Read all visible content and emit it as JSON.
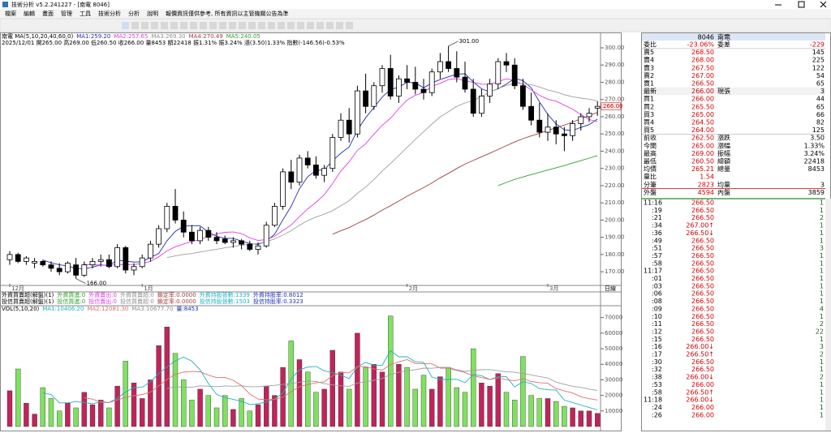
{
  "window": {
    "title": "技術分析 v5.2.241227 - [南電 8046]"
  },
  "menu": [
    "檔案",
    "編輯",
    "畫面",
    "管理",
    "工具",
    "技術分析",
    "分析",
    "說明",
    "報價資訊僅供參考, 所有資訊以主管機關公告為準"
  ],
  "chart_data": {
    "type": "candlestick",
    "header": [
      {
        "text": "南電 MA(5,10,20,40,60,0)",
        "color": "#000000"
      },
      {
        "text": "MA1:259.20",
        "color": "#2030b0"
      },
      {
        "text": "MA2:257.65",
        "color": "#e040e0"
      },
      {
        "text": "MA3:269.30",
        "color": "#909090"
      },
      {
        "text": "MA4:270.49",
        "color": "#a04040"
      },
      {
        "text": "MA5:240.05",
        "color": "#30a030"
      }
    ],
    "info_line": "2025/12/01 開265.00 高269.00 低260.50 收266.00 量8453 額22418 振1.31% 振3.24% 漲(3.50)1.33% 指數(-146.56)-0.53%",
    "ohlc": {
      "open": [
        177,
        180,
        176,
        175,
        176,
        174,
        172,
        170,
        174,
        168,
        174,
        176,
        177,
        173,
        184,
        171,
        173,
        178,
        186,
        195,
        208,
        200,
        193,
        188,
        194,
        190,
        189,
        187,
        188,
        186,
        183,
        185,
        197,
        208,
        228,
        222,
        236,
        232,
        226,
        230,
        248,
        258,
        250,
        275,
        266,
        278,
        288,
        272,
        282,
        280,
        276,
        274,
        286,
        292,
        288,
        283,
        276,
        262,
        272,
        279,
        292,
        290,
        278,
        266,
        258,
        251,
        254,
        250,
        249,
        256,
        260,
        265
      ],
      "high": [
        182,
        181,
        179,
        178,
        177,
        176,
        175,
        176,
        178,
        176,
        178,
        180,
        180,
        186,
        185,
        175,
        180,
        188,
        197,
        210,
        218,
        205,
        197,
        196,
        196,
        193,
        191,
        190,
        189,
        188,
        187,
        199,
        210,
        230,
        235,
        238,
        240,
        237,
        232,
        250,
        262,
        265,
        278,
        285,
        280,
        290,
        296,
        284,
        290,
        289,
        282,
        288,
        297,
        301,
        298,
        292,
        282,
        276,
        282,
        294,
        297,
        294,
        282,
        274,
        268,
        262,
        258,
        254,
        258,
        262,
        265,
        269
      ],
      "low": [
        174,
        175,
        174,
        172,
        173,
        170,
        168,
        169,
        166,
        167,
        172,
        173,
        172,
        172,
        169,
        168,
        172,
        176,
        184,
        193,
        198,
        190,
        186,
        186,
        188,
        186,
        186,
        184,
        183,
        182,
        180,
        184,
        196,
        206,
        218,
        220,
        230,
        224,
        222,
        228,
        246,
        245,
        248,
        262,
        264,
        274,
        270,
        268,
        276,
        273,
        270,
        272,
        282,
        286,
        280,
        274,
        260,
        260,
        268,
        276,
        286,
        276,
        264,
        255,
        248,
        246,
        244,
        240,
        246,
        252,
        257,
        260.5
      ],
      "close": [
        180,
        176,
        178,
        176,
        174,
        172,
        170,
        175,
        168,
        174,
        176,
        177,
        173,
        184,
        171,
        173,
        178,
        186,
        195,
        208,
        200,
        193,
        188,
        194,
        190,
        188,
        187,
        188,
        186,
        183,
        185,
        197,
        208,
        228,
        222,
        236,
        232,
        226,
        230,
        248,
        258,
        250,
        275,
        266,
        278,
        288,
        272,
        282,
        280,
        276,
        274,
        286,
        292,
        288,
        283,
        276,
        262,
        272,
        279,
        292,
        290,
        278,
        266,
        258,
        251,
        254,
        250,
        249,
        256,
        260,
        262,
        266
      ]
    },
    "up_color": "#ffffff",
    "down_color": "#000000",
    "ylim": [
      163,
      308
    ],
    "yticks": [
      {
        "value": 170,
        "label": "170.00"
      },
      {
        "value": 180,
        "label": "180.00"
      },
      {
        "value": 190,
        "label": "190.00"
      },
      {
        "value": 200,
        "label": "200.00"
      },
      {
        "value": 210,
        "label": "210.00"
      },
      {
        "value": 220,
        "label": "220.00"
      },
      {
        "value": 230,
        "label": "230.00"
      },
      {
        "value": 240,
        "label": "240.00"
      },
      {
        "value": 250,
        "label": "250.00"
      },
      {
        "value": 260,
        "label": "260.00"
      },
      {
        "value": 270,
        "label": "270.00"
      },
      {
        "value": 280,
        "label": "280.00"
      },
      {
        "value": 290,
        "label": "290.00"
      },
      {
        "value": 300,
        "label": "300.00"
      }
    ],
    "last_price": {
      "value": 266,
      "label": "266.00"
    },
    "annotations": [
      {
        "index": 8,
        "value": 166,
        "label": "166.00"
      },
      {
        "index": 53,
        "value": 301,
        "label": "301.00"
      }
    ],
    "x_ticks": [
      {
        "value": 0,
        "label": "12月"
      },
      {
        "value": 16,
        "label": "1月"
      },
      {
        "value": 48,
        "label": "2月"
      },
      {
        "value": 65,
        "label": "3月"
      }
    ],
    "period": "日線",
    "ma": {
      "periods": [
        5,
        10,
        20,
        40,
        60
      ],
      "colors": [
        "#2030b0",
        "#e040e0",
        "#a0a0a0",
        "#a04040",
        "#30a030"
      ]
    },
    "indicator_rows": [
      [
        {
          "text": "外資買賣超(解盤)(1)",
          "color": "#000000"
        },
        {
          "text": "外資買進:0",
          "color": "#30a030"
        },
        {
          "text": "外資賣出:0",
          "color": "#e040e0"
        },
        {
          "text": "外資買賣超:0",
          "color": "#909090"
        },
        {
          "text": "鎖定率:0.0000",
          "color": "#a04040"
        },
        {
          "text": "外資持股張數:1339",
          "color": "#20b0c0"
        },
        {
          "text": "外資持股率:0.8012",
          "color": "#2030b0"
        }
      ],
      [
        {
          "text": "投信買賣超(解盤)(1)",
          "color": "#000000"
        },
        {
          "text": "投信買進:0",
          "color": "#30a030"
        },
        {
          "text": "投信賣出:0",
          "color": "#e040e0"
        },
        {
          "text": "投信買賣超:0",
          "color": "#909090"
        },
        {
          "text": "鎖定率:0.0000",
          "color": "#a04040"
        },
        {
          "text": "投信持股張數:1503",
          "color": "#20b0c0"
        },
        {
          "text": "投信持股率:0.3323",
          "color": "#2030b0"
        }
      ]
    ],
    "volume": {
      "header": [
        {
          "text": "VOL(5,10,20)",
          "color": "#000000"
        },
        {
          "text": "MA1:10406.20",
          "color": "#20b0c0"
        },
        {
          "text": "MA2:12081.30",
          "color": "#e07070"
        },
        {
          "text": "MA3:10677.70",
          "color": "#909090"
        },
        {
          "text": "量:8453",
          "color": "#2030b0"
        }
      ],
      "values": [
        23000,
        37000,
        15000,
        8000,
        25000,
        18000,
        10000,
        15000,
        12000,
        22000,
        14000,
        17000,
        12000,
        26000,
        42000,
        28000,
        18000,
        30000,
        52000,
        64000,
        47000,
        30000,
        17000,
        24000,
        20000,
        12000,
        20000,
        11000,
        18000,
        10000,
        14000,
        26000,
        20000,
        38000,
        55000,
        43000,
        35000,
        22000,
        24000,
        49000,
        35000,
        24000,
        60000,
        38000,
        40000,
        35000,
        71000,
        40000,
        38000,
        24000,
        33000,
        24000,
        32000,
        38000,
        25000,
        22000,
        50000,
        28000,
        26000,
        34000,
        22000,
        17000,
        45000,
        20000,
        18000,
        18000,
        16000,
        13000,
        12000,
        10000,
        10000,
        8453
      ],
      "up_color": "#c0245a",
      "down_color": "#80e060",
      "vlim": [
        0,
        74000
      ],
      "vticks": [
        10000,
        20000,
        30000,
        40000,
        50000,
        60000,
        70000
      ],
      "ma_periods": [
        5,
        10,
        20
      ],
      "ma_colors": [
        "#20b0c0",
        "#e07070",
        "#a0a0a0"
      ]
    }
  },
  "quote": {
    "symbol": "8046",
    "name": "南電",
    "rows": [
      [
        "委比",
        "-23.06%",
        "委差",
        "-229"
      ],
      [
        "賣5",
        "268.50",
        "",
        "145"
      ],
      [
        "賣4",
        "268.00",
        "",
        "225"
      ],
      [
        "賣3",
        "267.50",
        "",
        "122"
      ],
      [
        "賣2",
        "267.00",
        "",
        "54"
      ],
      [
        "賣1",
        "266.50",
        "",
        "65"
      ],
      [
        "最新",
        "266.00",
        "現張",
        "3"
      ],
      [
        "買1",
        "266.00",
        "",
        "44"
      ],
      [
        "買2",
        "265.50",
        "",
        "65"
      ],
      [
        "買3",
        "265.00",
        "",
        "66"
      ],
      [
        "買4",
        "264.50",
        "",
        "82"
      ],
      [
        "買5",
        "264.00",
        "",
        "125"
      ],
      [
        "前收",
        "262.50",
        "漲跌",
        "3.50"
      ],
      [
        "今開",
        "265.00",
        "漲幅",
        "1.33%"
      ],
      [
        "最高",
        "269.00",
        "振幅",
        "3.24%"
      ],
      [
        "最低",
        "260.50",
        "總額",
        "22418"
      ],
      [
        "均價",
        "265.21",
        "總量",
        "8453"
      ],
      [
        "量比",
        "1.54",
        "",
        ""
      ],
      [
        "分筆",
        "2823",
        "均量",
        "3"
      ],
      [
        "外盤",
        "4594",
        "內盤",
        "3859"
      ]
    ]
  },
  "ticks": {
    "rows": [
      [
        "11:16",
        "266.50",
        "1"
      ],
      [
        ":19",
        "266.50",
        "1"
      ],
      [
        ":21",
        "266.50",
        "2"
      ],
      [
        ":34",
        "267.00↑",
        "1"
      ],
      [
        ":36",
        "266.50↓",
        "1"
      ],
      [
        ":49",
        "266.50",
        "1"
      ],
      [
        ":51",
        "266.50",
        "3"
      ],
      [
        ":57",
        "266.50",
        "1"
      ],
      [
        ":58",
        "266.50",
        "1"
      ],
      [
        "11:17",
        "266.50",
        "1"
      ],
      [
        ":01",
        "266.50",
        "1"
      ],
      [
        ":03",
        "266.50",
        "1"
      ],
      [
        ":06",
        "266.50",
        "1"
      ],
      [
        ":08",
        "266.50",
        "1"
      ],
      [
        ":09",
        "266.50",
        "4"
      ],
      [
        ":10",
        "266.50",
        "1"
      ],
      [
        ":11",
        "266.50",
        "2"
      ],
      [
        ":12",
        "266.50",
        "22"
      ],
      [
        ":15",
        "266.50",
        "1"
      ],
      [
        ":16",
        "266.00↓",
        "3"
      ],
      [
        ":17",
        "266.50↑",
        "2"
      ],
      [
        ":30",
        "266.50",
        "1"
      ],
      [
        ":32",
        "266.50",
        "1"
      ],
      [
        ":38",
        "266.00↓",
        "2"
      ],
      [
        ":53",
        "266.00",
        "1"
      ],
      [
        ":58",
        "266.50↑",
        "1"
      ],
      [
        "11:18",
        "266.00↓",
        "1"
      ],
      [
        ":24",
        "266.00",
        "1"
      ],
      [
        ":26",
        "266.00",
        "1"
      ]
    ]
  }
}
